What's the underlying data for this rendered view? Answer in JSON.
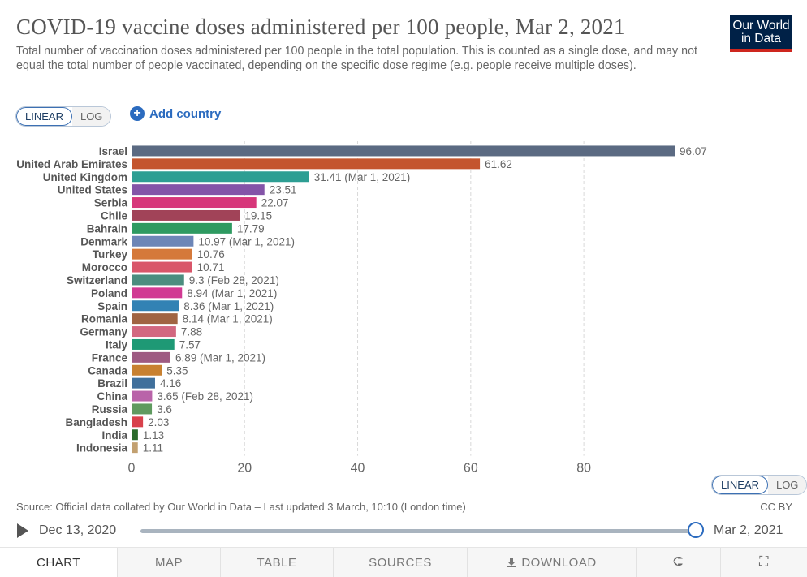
{
  "header": {
    "title": "COVID-19 vaccine doses administered per 100 people, Mar 2, 2021",
    "subtitle": "Total number of vaccination doses administered per 100 people in the total population. This is counted as a single dose, and may not equal the total number of people vaccinated, depending on the specific dose regime (e.g. people receive multiple doses).",
    "logo_line1": "Our World",
    "logo_line2": "in Data"
  },
  "controls": {
    "linear_label": "LINEAR",
    "log_label": "LOG",
    "add_country_label": "Add country",
    "add_icon": "plus-circle-icon"
  },
  "chart_data": {
    "type": "bar",
    "orientation": "horizontal",
    "title": "COVID-19 vaccine doses administered per 100 people, Mar 2, 2021",
    "xlim": [
      0,
      96.07
    ],
    "x_ticks": [
      "0",
      "20",
      "40",
      "60",
      "80"
    ],
    "x_tick_values": [
      0,
      20,
      40,
      60,
      80
    ],
    "grid": "vertical-dashed",
    "categories": [
      "Israel",
      "United Arab Emirates",
      "United Kingdom",
      "United States",
      "Serbia",
      "Chile",
      "Bahrain",
      "Denmark",
      "Turkey",
      "Morocco",
      "Switzerland",
      "Poland",
      "Spain",
      "Romania",
      "Germany",
      "Italy",
      "France",
      "Canada",
      "Brazil",
      "China",
      "Russia",
      "Bangladesh",
      "India",
      "Indonesia"
    ],
    "values": [
      96.07,
      61.62,
      31.41,
      23.51,
      22.07,
      19.15,
      17.79,
      10.97,
      10.76,
      10.71,
      9.3,
      8.94,
      8.36,
      8.14,
      7.88,
      7.57,
      6.89,
      5.35,
      4.16,
      3.65,
      3.6,
      2.03,
      1.13,
      1.11
    ],
    "value_labels": [
      "96.07",
      "61.62",
      "31.41 (Mar 1, 2021)",
      "23.51",
      "22.07",
      "19.15",
      "17.79",
      "10.97 (Mar 1, 2021)",
      "10.76",
      "10.71",
      "9.3 (Feb 28, 2021)",
      "8.94 (Mar 1, 2021)",
      "8.36 (Mar 1, 2021)",
      "8.14 (Mar 1, 2021)",
      "7.88",
      "7.57",
      "6.89 (Mar 1, 2021)",
      "5.35",
      "4.16",
      "3.65 (Feb 28, 2021)",
      "3.6",
      "2.03",
      "1.13",
      "1.11"
    ],
    "colors": [
      "#5b6a82",
      "#c4552e",
      "#2d9e93",
      "#8454a8",
      "#d7367a",
      "#a14358",
      "#2e9a61",
      "#6d86b7",
      "#d5793a",
      "#d9566a",
      "#4b8d7f",
      "#d13a93",
      "#3282b4",
      "#a06442",
      "#d26880",
      "#1e9975",
      "#9e5a82",
      "#c88131",
      "#40709c",
      "#b963a9",
      "#5f9a5f",
      "#d8414b",
      "#2b6a2b",
      "#c2a070"
    ]
  },
  "footer": {
    "source": "Source: Official data collated by Our World in Data – Last updated 3 March, 10:10 (London time)",
    "license": "CC BY"
  },
  "timeline": {
    "start_label": "Dec 13, 2020",
    "end_label": "Mar 2, 2021",
    "position": 1.0
  },
  "tabs": [
    {
      "label": "CHART"
    },
    {
      "label": "MAP"
    },
    {
      "label": "TABLE"
    },
    {
      "label": "SOURCES"
    },
    {
      "label": "DOWNLOAD"
    },
    {
      "label": "",
      "icon": "share-icon"
    },
    {
      "label": "",
      "icon": "expand-icon"
    }
  ]
}
